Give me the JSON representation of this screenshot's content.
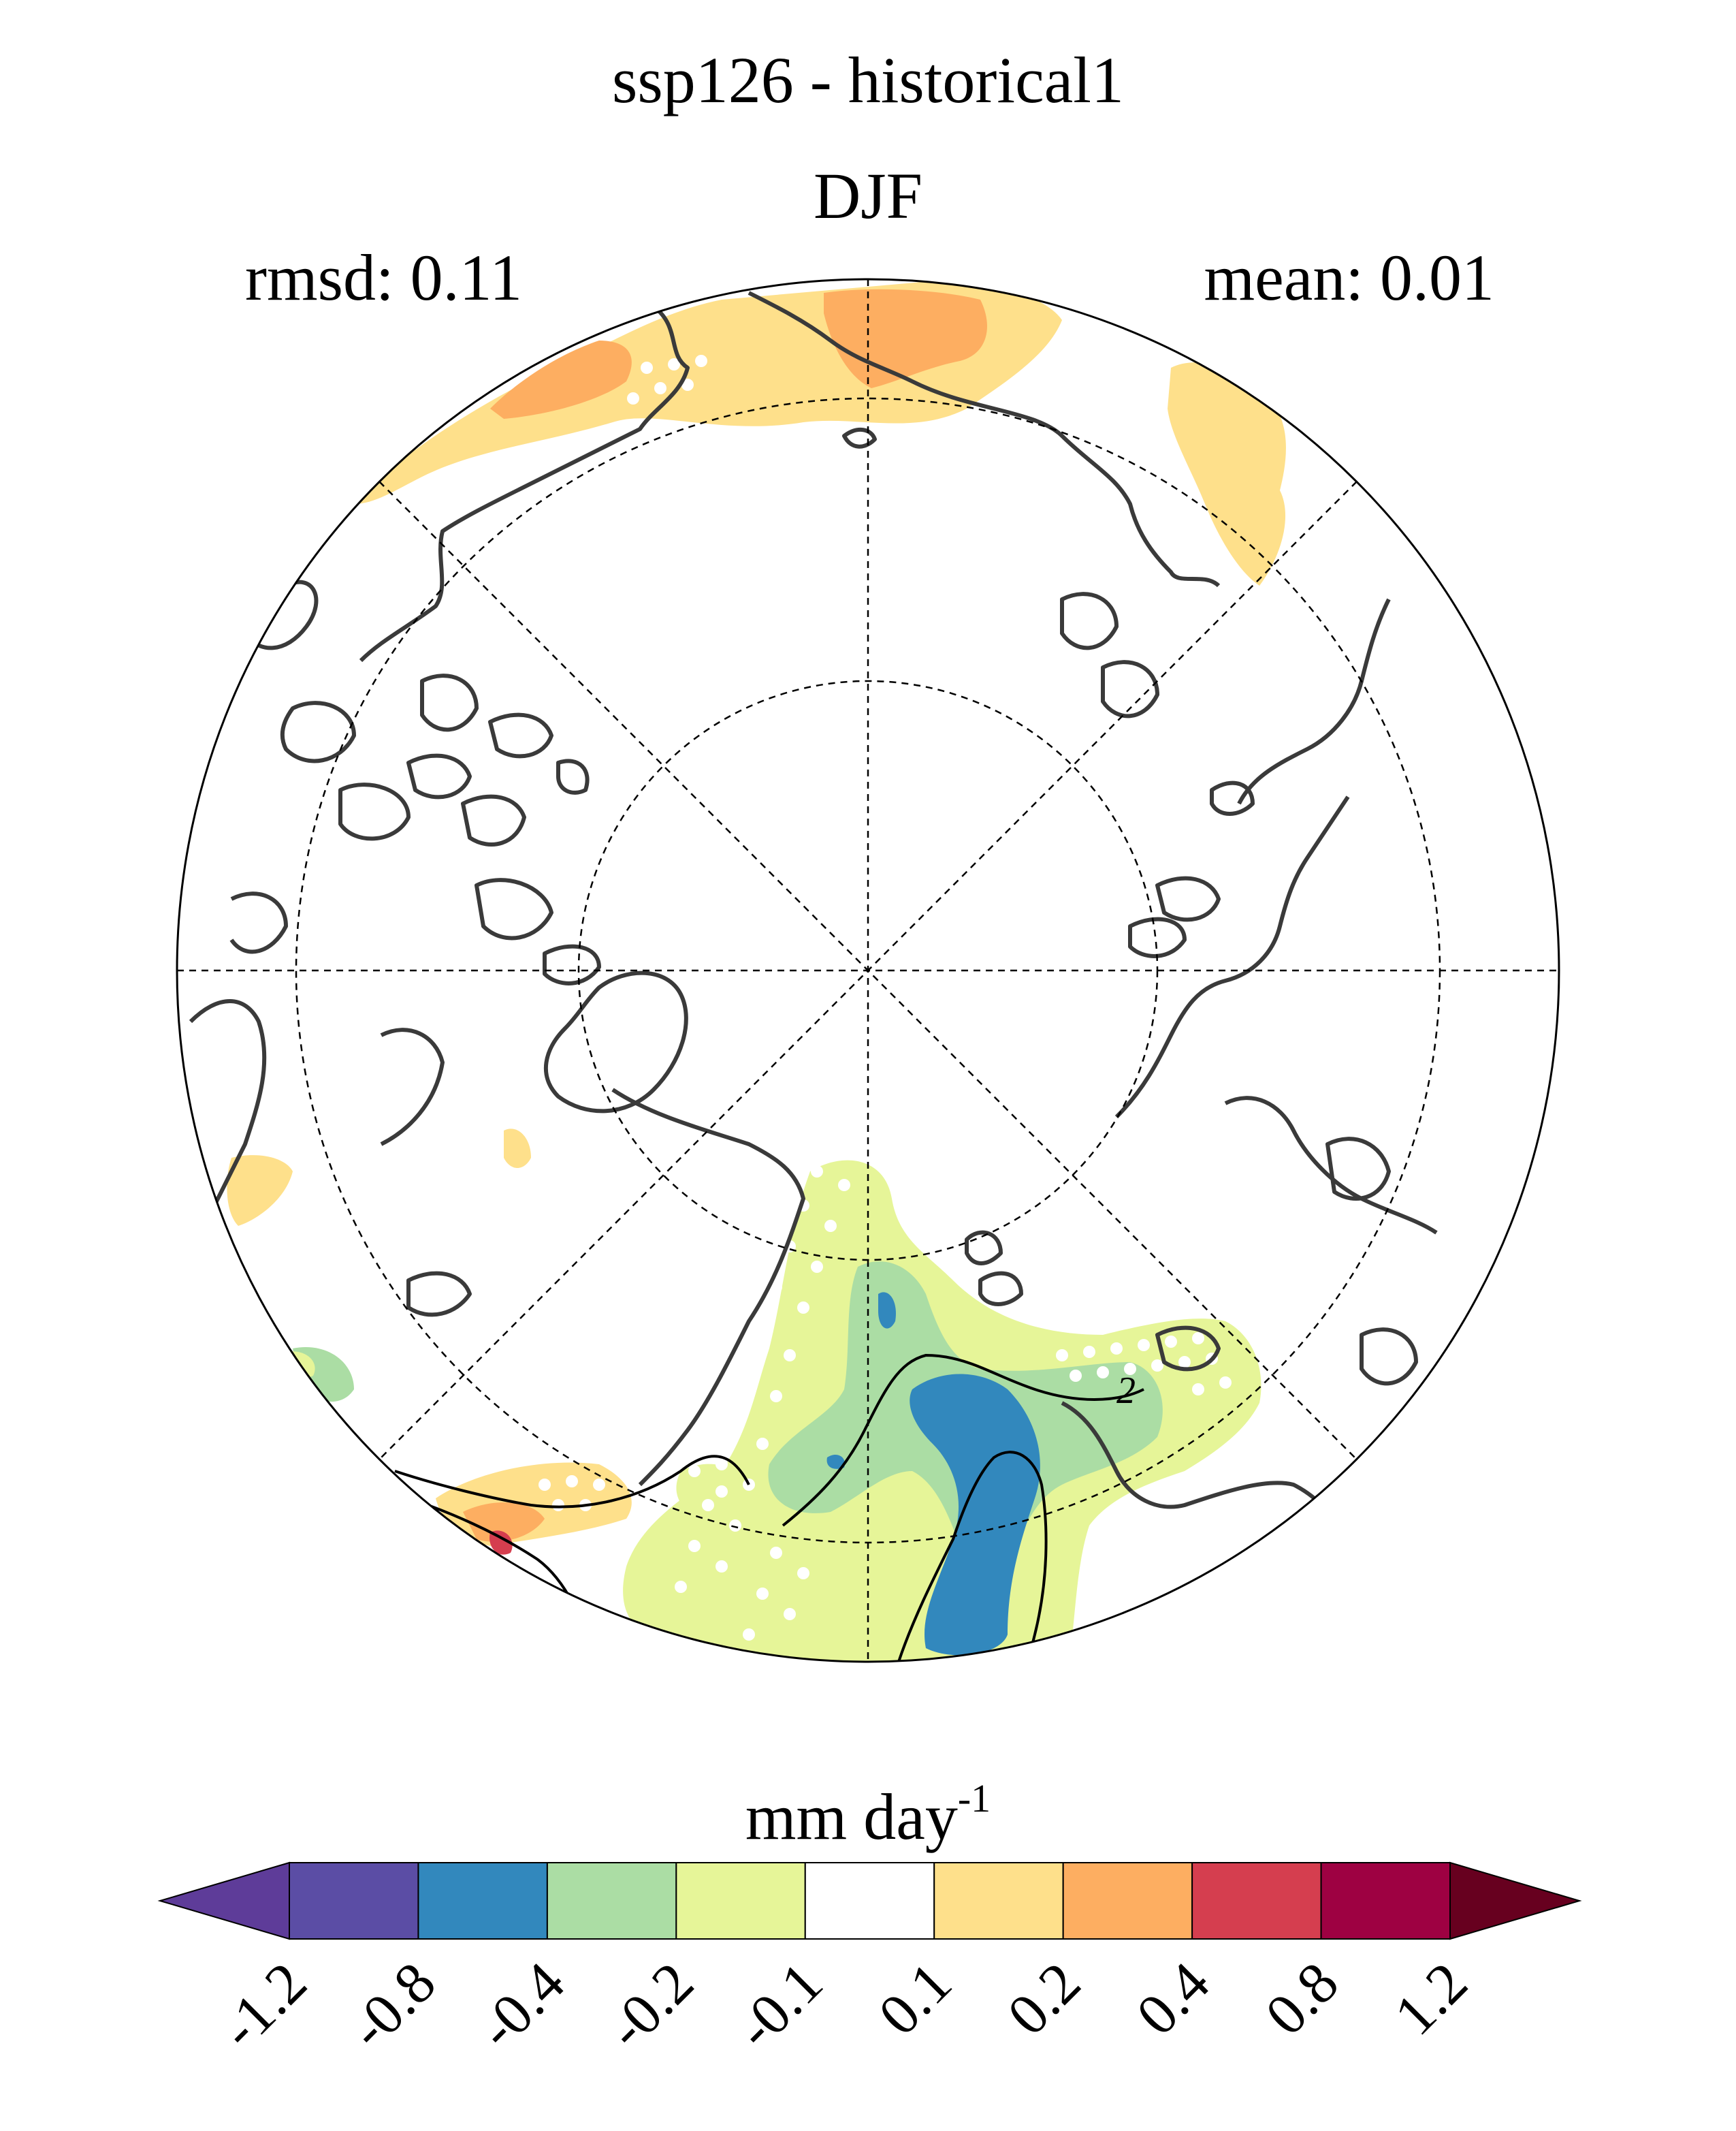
{
  "title": "ssp126 - historical1",
  "season": "DJF",
  "stats": {
    "rmsd_label": "rmsd: 0.11",
    "mean_label": "mean: 0.01"
  },
  "colorbar": {
    "units": "mm day",
    "units_exponent": "-1",
    "ticks": [
      "-1.2",
      "-0.8",
      "-0.4",
      "-0.2",
      "-0.1",
      "0.1",
      "0.2",
      "0.4",
      "0.8",
      "1.2"
    ],
    "colors": [
      "#5e3c99",
      "#5b4da5",
      "#3288bd",
      "#abdda4",
      "#e6f598",
      "#ffffff",
      "#fee08b",
      "#fdae61",
      "#d53e4f",
      "#9e0142",
      "#67001f"
    ]
  },
  "contour_label": "2",
  "colors": {
    "coast": "#3a3a3a",
    "grid": "#000000",
    "pos_light": "#fee08b",
    "pos_mid": "#fdae61",
    "pos_strong": "#d53e4f",
    "neg_light": "#e6f598",
    "neg_mid": "#abdda4",
    "neg_strong": "#3288bd"
  }
}
